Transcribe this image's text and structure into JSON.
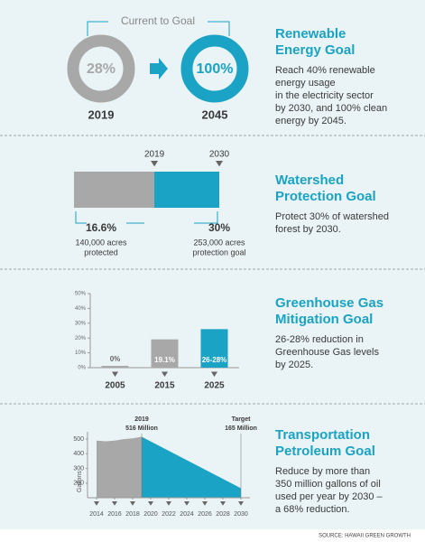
{
  "sections": [
    {
      "title": [
        "Renewable",
        "Energy Goal"
      ],
      "description": [
        "Reach 40% renewable",
        "energy usage",
        "in the electricity sector",
        "by 2030, and 100% clean",
        "energy by 2045."
      ]
    },
    {
      "title": [
        "Watershed",
        "Protection Goal"
      ],
      "description": [
        "Protect 30% of watershed",
        "forest by 2030."
      ]
    },
    {
      "title": [
        "Greenhouse Gas",
        "Mitigation Goal"
      ],
      "description": [
        "26-28% reduction in",
        "Greenhouse Gas levels",
        "by 2025."
      ]
    },
    {
      "title": [
        "Transportation",
        "Petroleum Goal"
      ],
      "description": [
        "Reduce by more than",
        "350 million gallons of oil",
        "used per year by 2030 –",
        "a 68% reduction."
      ]
    }
  ],
  "source": "SOURCE: HAWAII GREEN GROWTH",
  "chart_data": [
    {
      "type": "donut",
      "title": "Current to Goal",
      "categories": [
        "2019",
        "2045"
      ],
      "values": [
        28,
        100
      ],
      "value_labels": [
        "28%",
        "100%"
      ],
      "colors": [
        "#a8a8a8",
        "#1aa3c4"
      ]
    },
    {
      "type": "bullet",
      "categories": [
        "2019",
        "2030"
      ],
      "values": [
        16.6,
        30
      ],
      "value_labels": [
        "16.6%",
        "30%"
      ],
      "notes": [
        [
          "140,000 acres",
          "protected"
        ],
        [
          "253,000 acres",
          "protection goal"
        ]
      ],
      "colors": [
        "#a8a8a8",
        "#1aa3c4"
      ],
      "xlim": [
        0,
        30
      ]
    },
    {
      "type": "bar",
      "categories": [
        "2005",
        "2015",
        "2025"
      ],
      "values": [
        0,
        19.1,
        26
      ],
      "value_labels": [
        "0%",
        "19.1%",
        "26-28%"
      ],
      "colors": [
        "#a8a8a8",
        "#a8a8a8",
        "#1aa3c4"
      ],
      "ylim": [
        0,
        50
      ],
      "yticks": [
        {
          "value": 0,
          "label": "0%"
        },
        {
          "value": 10,
          "label": "10%"
        },
        {
          "value": 20,
          "label": "20%"
        },
        {
          "value": 30,
          "label": "30%"
        },
        {
          "value": 40,
          "label": "40%"
        },
        {
          "value": 50,
          "label": "50%"
        }
      ]
    },
    {
      "type": "area",
      "ylabel": "Gallons",
      "x": [
        2014,
        2015,
        2016,
        2017,
        2018,
        2019,
        2030
      ],
      "series": [
        {
          "color": "#a8a8a8",
          "values": [
            490,
            485,
            490,
            500,
            505,
            516,
            null
          ]
        },
        {
          "color": "#1aa3c4",
          "values": [
            null,
            null,
            null,
            null,
            null,
            516,
            165
          ]
        }
      ],
      "xlim": [
        2013,
        2031
      ],
      "xticks": [
        2014,
        2016,
        2018,
        2020,
        2022,
        2024,
        2026,
        2028,
        2030
      ],
      "ylim": [
        100,
        550
      ],
      "yticks": [
        200,
        300,
        400,
        500
      ],
      "annotations": [
        {
          "x": 2019,
          "lines": [
            "2019",
            "516 Million"
          ]
        },
        {
          "x": 2030,
          "lines": [
            "Target",
            "165 Million"
          ]
        }
      ]
    }
  ]
}
